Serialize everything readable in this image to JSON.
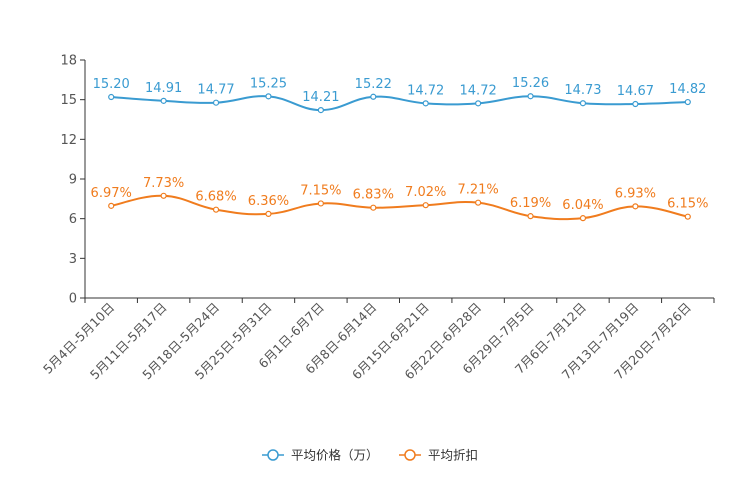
{
  "chart_data": {
    "type": "line",
    "title": "",
    "xlabel": "",
    "ylabel": "",
    "ylim": [
      0,
      18
    ],
    "yticks": [
      0,
      3,
      6,
      9,
      12,
      15,
      18
    ],
    "grid": false,
    "legend_position": "bottom-center",
    "categories": [
      "5月4日-5月10日",
      "5月11日-5月17日",
      "5月18日-5月24日",
      "5月25日-5月31日",
      "6月1日-6月7日",
      "6月8日-6月14日",
      "6月15日-6月21日",
      "6月22日-6月28日",
      "6月29日-7月5日",
      "7月6日-7月12日",
      "7月13日-7月19日",
      "7月20日-7月26日"
    ],
    "series": [
      {
        "name": "平均价格（万）",
        "color": "#3a9bd1",
        "values": [
          15.2,
          14.91,
          14.77,
          15.25,
          14.21,
          15.22,
          14.72,
          14.72,
          15.26,
          14.73,
          14.67,
          14.82
        ],
        "labels": [
          "15.20",
          "14.91",
          "14.77",
          "15.25",
          "14.21",
          "15.22",
          "14.72",
          "14.72",
          "15.26",
          "14.73",
          "14.67",
          "14.82"
        ]
      },
      {
        "name": "平均折扣",
        "color": "#f07c1e",
        "values": [
          6.97,
          7.73,
          6.68,
          6.36,
          7.15,
          6.83,
          7.02,
          7.21,
          6.19,
          6.04,
          6.93,
          6.15
        ],
        "labels": [
          "6.97%",
          "7.73%",
          "6.68%",
          "6.36%",
          "7.15%",
          "6.83%",
          "7.02%",
          "7.21%",
          "6.19%",
          "6.04%",
          "6.93%",
          "6.15%"
        ]
      }
    ]
  }
}
